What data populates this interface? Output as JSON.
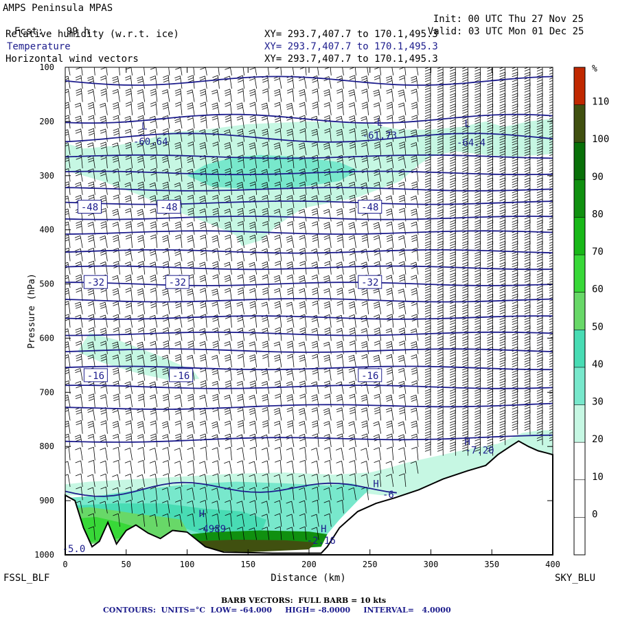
{
  "header": {
    "model": "AMPS Peninsula MPAS",
    "init_label": "Init:",
    "init_value": "00 UTC Thu 27 Nov 25",
    "fcst_label": "Fcst:",
    "fcst_value": "99 h",
    "valid_label": "Valid:",
    "valid_value": "03 UTC Mon 01 Dec 25",
    "fields": [
      {
        "name": "Relative humidity (w.r.t. ice)",
        "xy": "XY= 293.7,407.7 to 170.1,495.3"
      },
      {
        "name": "Temperature",
        "xy": "XY= 293.7,407.7 to 170.1,495.3"
      },
      {
        "name": "Horizontal wind vectors",
        "xy": "XY= 293.7,407.7 to 170.1,495.3"
      }
    ]
  },
  "chart_data": {
    "type": "heatmap",
    "subtype": "vertical cross-section",
    "xlabel": "Distance (km)",
    "ylabel": "Pressure (hPa)",
    "xlim": [
      0,
      400
    ],
    "ylim": [
      1000,
      100
    ],
    "x_ticks": [
      0,
      50,
      100,
      150,
      200,
      250,
      300,
      350,
      400
    ],
    "y_ticks": [
      100,
      200,
      300,
      400,
      500,
      600,
      700,
      800,
      900,
      1000
    ],
    "left_endpoint": "FSSL_BLF",
    "right_endpoint": "SKY_BLU",
    "colorbar": {
      "unit": "%",
      "levels": [
        0,
        10,
        20,
        30,
        40,
        50,
        60,
        70,
        80,
        90,
        100,
        110
      ],
      "colors": [
        "#ffffff",
        "#ffffff",
        "#ffffff",
        "#c6f7e3",
        "#78e8cc",
        "#48dcb4",
        "#68d868",
        "#38d838",
        "#18b818",
        "#109010",
        "#087008",
        "#405010",
        "#c02800"
      ]
    },
    "rh_regions": [
      {
        "level": 30,
        "color": "#c6f7e3",
        "points": [
          [
            0,
            240
          ],
          [
            15,
            250
          ],
          [
            40,
            245
          ],
          [
            65,
            235
          ],
          [
            85,
            220
          ],
          [
            115,
            215
          ],
          [
            150,
            205
          ],
          [
            200,
            200
          ],
          [
            250,
            205
          ],
          [
            275,
            215
          ],
          [
            300,
            215
          ],
          [
            325,
            210
          ],
          [
            345,
            200
          ],
          [
            360,
            210
          ],
          [
            380,
            200
          ],
          [
            400,
            195
          ],
          [
            400,
            260
          ],
          [
            370,
            265
          ],
          [
            345,
            262
          ],
          [
            320,
            255
          ],
          [
            300,
            265
          ],
          [
            290,
            280
          ],
          [
            275,
            310
          ],
          [
            240,
            340
          ],
          [
            195,
            360
          ],
          [
            175,
            390
          ],
          [
            160,
            420
          ],
          [
            145,
            430
          ],
          [
            140,
            410
          ],
          [
            120,
            390
          ],
          [
            90,
            365
          ],
          [
            60,
            335
          ],
          [
            30,
            310
          ],
          [
            0,
            290
          ]
        ]
      },
      {
        "level": 40,
        "color": "#78e8cc",
        "points": [
          [
            100,
            300
          ],
          [
            115,
            280
          ],
          [
            140,
            265
          ],
          [
            160,
            262
          ],
          [
            190,
            265
          ],
          [
            225,
            275
          ],
          [
            240,
            290
          ],
          [
            225,
            310
          ],
          [
            190,
            322
          ],
          [
            150,
            325
          ],
          [
            120,
            320
          ]
        ]
      },
      {
        "level": 30,
        "color": "#c6f7e3",
        "points": [
          [
            20,
            590
          ],
          [
            45,
            605
          ],
          [
            80,
            635
          ],
          [
            105,
            660
          ],
          [
            110,
            675
          ],
          [
            90,
            680
          ],
          [
            60,
            665
          ],
          [
            30,
            645
          ],
          [
            10,
            625
          ]
        ]
      },
      {
        "level": 30,
        "color": "#c6f7e3",
        "points": [
          [
            0,
            870
          ],
          [
            20,
            865
          ],
          [
            60,
            860
          ],
          [
            100,
            855
          ],
          [
            140,
            850
          ],
          [
            180,
            848
          ],
          [
            220,
            852
          ],
          [
            250,
            848
          ],
          [
            265,
            840
          ],
          [
            280,
            830
          ],
          [
            300,
            820
          ],
          [
            330,
            805
          ],
          [
            355,
            795
          ],
          [
            375,
            775
          ],
          [
            390,
            770
          ],
          [
            400,
            770
          ],
          [
            400,
            820
          ],
          [
            380,
            810
          ],
          [
            365,
            810
          ],
          [
            350,
            830
          ],
          [
            330,
            850
          ],
          [
            305,
            875
          ],
          [
            280,
            890
          ],
          [
            260,
            890
          ],
          [
            240,
            885
          ],
          [
            230,
            890
          ],
          [
            0,
            890
          ]
        ]
      },
      {
        "level": 40,
        "color": "#78e8cc",
        "points": [
          [
            0,
            895
          ],
          [
            30,
            890
          ],
          [
            60,
            880
          ],
          [
            100,
            870
          ],
          [
            140,
            865
          ],
          [
            180,
            868
          ],
          [
            215,
            872
          ],
          [
            235,
            868
          ],
          [
            250,
            878
          ],
          [
            240,
            900
          ],
          [
            225,
            935
          ],
          [
            210,
            975
          ],
          [
            150,
            975
          ],
          [
            120,
            985
          ],
          [
            85,
            940
          ],
          [
            60,
            960
          ],
          [
            30,
            955
          ],
          [
            0,
            965
          ]
        ]
      },
      {
        "level": 60,
        "color": "#48dcb4",
        "points": [
          [
            0,
            910
          ],
          [
            40,
            905
          ],
          [
            80,
            905
          ],
          [
            115,
            915
          ],
          [
            145,
            920
          ],
          [
            165,
            935
          ],
          [
            160,
            965
          ],
          [
            130,
            970
          ],
          [
            110,
            960
          ],
          [
            90,
            945
          ],
          [
            70,
            935
          ],
          [
            40,
            940
          ],
          [
            10,
            945
          ],
          [
            0,
            945
          ]
        ]
      },
      {
        "level": 70,
        "color": "#68d868",
        "points": [
          [
            0,
            915
          ],
          [
            20,
            912
          ],
          [
            40,
            918
          ],
          [
            60,
            925
          ],
          [
            80,
            930
          ],
          [
            95,
            935
          ],
          [
            100,
            955
          ],
          [
            95,
            965
          ],
          [
            70,
            970
          ],
          [
            45,
            975
          ],
          [
            20,
            980
          ],
          [
            0,
            980
          ]
        ]
      },
      {
        "level": 80,
        "color": "#38d838",
        "points": [
          [
            0,
            935
          ],
          [
            25,
            930
          ],
          [
            45,
            940
          ],
          [
            60,
            950
          ],
          [
            55,
            965
          ],
          [
            30,
            975
          ],
          [
            0,
            978
          ]
        ]
      },
      {
        "level": 100,
        "color": "#109010",
        "points": [
          [
            90,
            965
          ],
          [
            120,
            958
          ],
          [
            160,
            955
          ],
          [
            200,
            957
          ],
          [
            215,
            962
          ],
          [
            210,
            985
          ],
          [
            160,
            992
          ],
          [
            110,
            990
          ],
          [
            92,
            980
          ]
        ]
      },
      {
        "level": 110,
        "color": "#405010",
        "points": [
          [
            105,
            975
          ],
          [
            140,
            972
          ],
          [
            180,
            973
          ],
          [
            205,
            977
          ],
          [
            200,
            990
          ],
          [
            150,
            995
          ],
          [
            110,
            992
          ]
        ]
      }
    ],
    "terrain": [
      [
        0,
        890
      ],
      [
        8,
        900
      ],
      [
        15,
        950
      ],
      [
        22,
        985
      ],
      [
        28,
        975
      ],
      [
        35,
        940
      ],
      [
        42,
        980
      ],
      [
        50,
        955
      ],
      [
        58,
        945
      ],
      [
        68,
        960
      ],
      [
        78,
        970
      ],
      [
        88,
        955
      ],
      [
        100,
        958
      ],
      [
        115,
        985
      ],
      [
        130,
        995
      ],
      [
        170,
        997
      ],
      [
        210,
        997
      ],
      [
        215,
        985
      ],
      [
        225,
        950
      ],
      [
        240,
        920
      ],
      [
        255,
        905
      ],
      [
        270,
        895
      ],
      [
        290,
        880
      ],
      [
        310,
        860
      ],
      [
        330,
        845
      ],
      [
        345,
        835
      ],
      [
        355,
        815
      ],
      [
        365,
        800
      ],
      [
        372,
        790
      ],
      [
        380,
        800
      ],
      [
        388,
        808
      ],
      [
        395,
        812
      ],
      [
        400,
        815
      ]
    ],
    "temperature_contours_c": [
      -64,
      -60,
      -56,
      -52,
      -48,
      -44,
      -40,
      -36,
      -32,
      -28,
      -24,
      -20,
      -16,
      -12,
      -8
    ],
    "contour_labels": [
      {
        "text": "-48",
        "x": 20,
        "p": 358
      },
      {
        "text": "-48",
        "x": 85,
        "p": 358
      },
      {
        "text": "-48",
        "x": 250,
        "p": 358
      },
      {
        "text": "-32",
        "x": 25,
        "p": 497
      },
      {
        "text": "-32",
        "x": 92,
        "p": 497
      },
      {
        "text": "-32",
        "x": 250,
        "p": 497
      },
      {
        "text": "-16",
        "x": 25,
        "p": 669
      },
      {
        "text": "-16",
        "x": 95,
        "p": 669
      },
      {
        "text": "-16",
        "x": 250,
        "p": 669
      }
    ],
    "extrema": [
      {
        "text": "L",
        "x": 65,
        "p": 215
      },
      {
        "text": "-60.64",
        "x": 70,
        "p": 243
      },
      {
        "text": "L",
        "x": 258,
        "p": 208
      },
      {
        "text": "-61.73",
        "x": 258,
        "p": 232
      },
      {
        "text": "L",
        "x": 330,
        "p": 210
      },
      {
        "text": "-64.4",
        "x": 333,
        "p": 245
      },
      {
        "text": "H",
        "x": 330,
        "p": 797
      },
      {
        "text": "-7.20",
        "x": 340,
        "p": 813
      },
      {
        "text": "H",
        "x": 255,
        "p": 875
      },
      {
        "text": "-6",
        "x": 265,
        "p": 895
      },
      {
        "text": "H",
        "x": 112,
        "p": 930
      },
      {
        "text": "-4989",
        "x": 120,
        "p": 958
      },
      {
        "text": "H",
        "x": 212,
        "p": 958
      },
      {
        "text": "-2.16",
        "x": 210,
        "p": 980
      },
      {
        "text": "-5.0",
        "x": 7,
        "p": 995
      }
    ],
    "barb_note": "BARB VECTORS:  FULL BARB = 10 kts",
    "contour_note": "CONTOURS:  UNITS=°C  LOW= -64.000     HIGH= -8.0000     INTERVAL=   4.0000"
  }
}
